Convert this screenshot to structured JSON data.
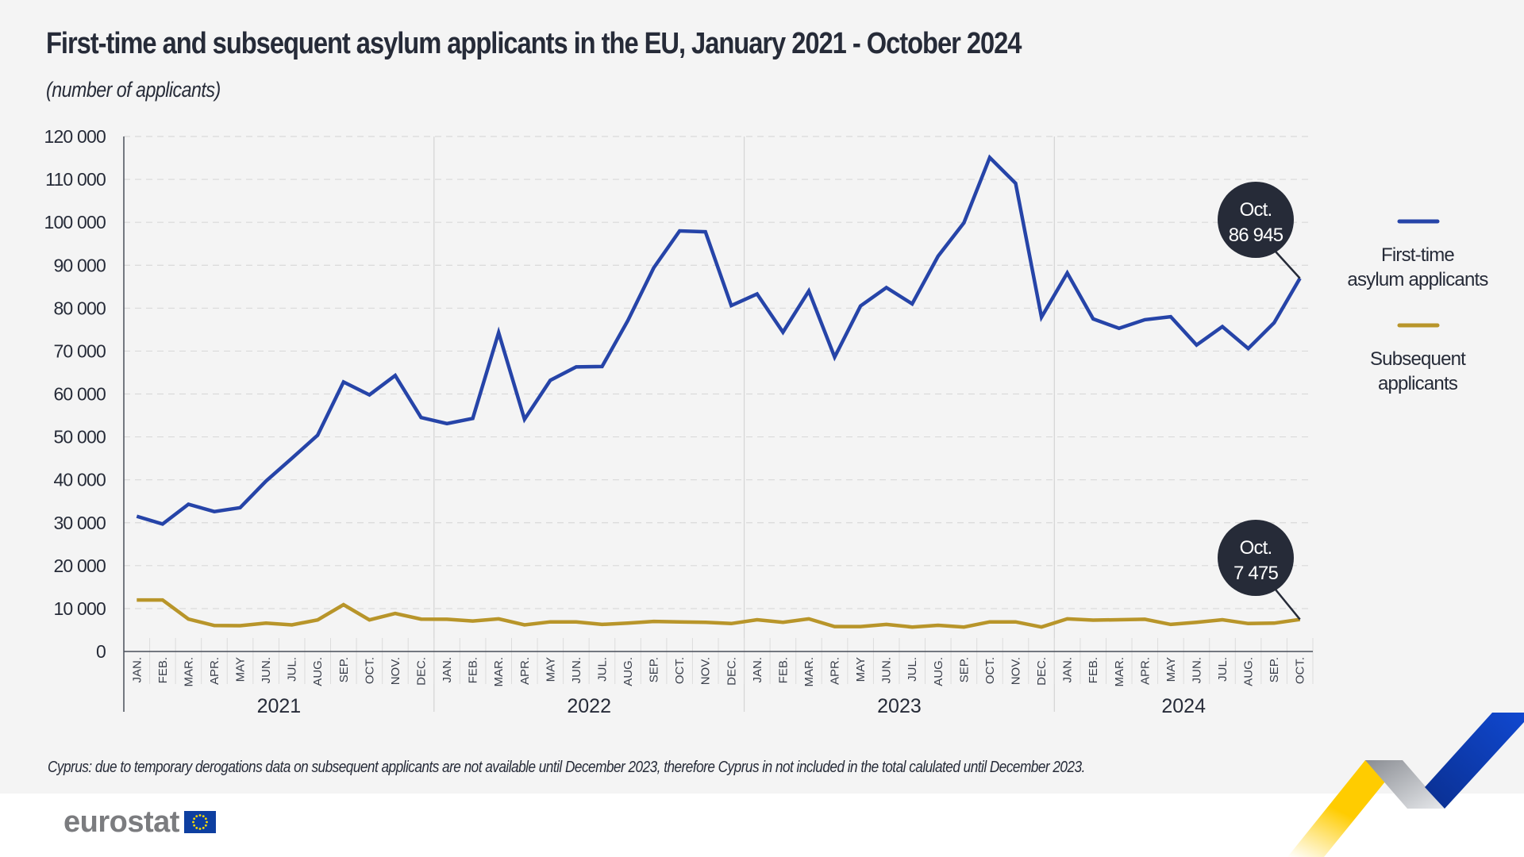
{
  "header": {
    "title": "First-time and subsequent asylum applicants in the EU, January 2021 - October 2024",
    "subtitle": "(number of applicants)"
  },
  "footnote": "Cyprus: due to temporary derogations data on subsequent applicants are not available until December 2023, therefore Cyprus in not included in the total calulated until December 2023.",
  "logo": {
    "text": "eurostat"
  },
  "colors": {
    "first_time": "#2644a8",
    "subsequent": "#b8952a",
    "callout_bg": "#262b38",
    "text": "#262b38",
    "grid": "#d9d9d9",
    "axis": "#4a4f5a"
  },
  "chart_data": {
    "type": "line",
    "title": "First-time and subsequent asylum applicants in the EU, January 2021 - October 2024",
    "subtitle": "(number of applicants)",
    "xlabel": "",
    "ylabel": "",
    "ylim": [
      0,
      120000
    ],
    "yticks": [
      0,
      10000,
      20000,
      30000,
      40000,
      50000,
      60000,
      70000,
      80000,
      90000,
      100000,
      110000,
      120000
    ],
    "ytick_labels": [
      "0",
      "10 000",
      "20 000",
      "30 000",
      "40 000",
      "50 000",
      "60 000",
      "70 000",
      "80 000",
      "90 000",
      "100 000",
      "110 000",
      "120 000"
    ],
    "grid": true,
    "legend_position": "right",
    "years": [
      {
        "label": "2021",
        "months": 12
      },
      {
        "label": "2022",
        "months": 12
      },
      {
        "label": "2023",
        "months": 12
      },
      {
        "label": "2024",
        "months": 10
      }
    ],
    "x": [
      "JAN.",
      "FEB.",
      "MAR.",
      "APR.",
      "MAY",
      "JUN.",
      "JUL.",
      "AUG.",
      "SEP.",
      "OCT.",
      "NOV.",
      "DEC.",
      "JAN.",
      "FEB.",
      "MAR.",
      "APR.",
      "MAY",
      "JUN.",
      "JUL.",
      "AUG.",
      "SEP.",
      "OCT.",
      "NOV.",
      "DEC.",
      "JAN.",
      "FEB.",
      "MAR.",
      "APR.",
      "MAY",
      "JUN.",
      "JUL.",
      "AUG.",
      "SEP.",
      "OCT.",
      "NOV.",
      "DEC.",
      "JAN.",
      "FEB.",
      "MAR.",
      "APR.",
      "MAY",
      "JUN.",
      "JUL.",
      "AUG.",
      "SEP.",
      "OCT."
    ],
    "series": [
      {
        "name": "First-time asylum applicants",
        "legend_label_lines": [
          "First-time",
          "asylum applicants"
        ],
        "color": "#2644a8",
        "values": [
          31500,
          29700,
          34300,
          32600,
          33500,
          39700,
          45000,
          50400,
          62800,
          59800,
          64300,
          54500,
          53100,
          54300,
          74300,
          54100,
          63200,
          66300,
          66400,
          77100,
          89400,
          98000,
          97800,
          80600,
          83300,
          74400,
          84000,
          68600,
          80500,
          84800,
          81000,
          92100,
          99900,
          115100,
          109100,
          77900,
          88200,
          77500,
          75300,
          77300,
          78000,
          71400,
          75700,
          70600,
          76600,
          86945
        ],
        "callout": {
          "month": "Oct.",
          "value_label": "86 945"
        }
      },
      {
        "name": "Subsequent applicants",
        "legend_label_lines": [
          "Subsequent",
          "applicants"
        ],
        "color": "#b8952a",
        "values": [
          12000,
          12000,
          7550,
          6050,
          6000,
          6600,
          6200,
          7350,
          10900,
          7350,
          8850,
          7550,
          7500,
          7100,
          7600,
          6200,
          6900,
          6900,
          6300,
          6600,
          7000,
          6900,
          6800,
          6500,
          7400,
          6800,
          7600,
          5800,
          5800,
          6300,
          5700,
          6100,
          5700,
          6900,
          6900,
          5700,
          7600,
          7300,
          7400,
          7500,
          6300,
          6800,
          7400,
          6500,
          6600,
          7475
        ],
        "callout": {
          "month": "Oct.",
          "value_label": "7 475"
        }
      }
    ]
  }
}
